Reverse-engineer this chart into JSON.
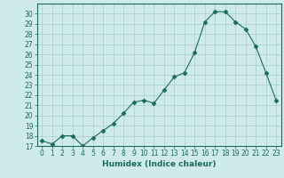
{
  "title": "",
  "xlabel": "Humidex (Indice chaleur)",
  "ylabel": "",
  "x": [
    0,
    1,
    2,
    3,
    4,
    5,
    6,
    7,
    8,
    9,
    10,
    11,
    12,
    13,
    14,
    15,
    16,
    17,
    18,
    19,
    20,
    21,
    22,
    23
  ],
  "y": [
    17.5,
    17.2,
    18.0,
    18.0,
    17.0,
    17.8,
    18.5,
    19.2,
    20.2,
    21.3,
    21.5,
    21.2,
    22.5,
    23.8,
    24.2,
    26.2,
    29.2,
    30.2,
    30.2,
    29.2,
    28.5,
    26.8,
    24.2,
    21.5
  ],
  "line_color": "#1a6b5a",
  "marker": "D",
  "marker_size": 2.5,
  "bg_color": "#ceeaea",
  "grid_color": "#aacccc",
  "ylim": [
    17,
    31
  ],
  "xlim": [
    -0.5,
    23.5
  ],
  "yticks": [
    17,
    18,
    19,
    20,
    21,
    22,
    23,
    24,
    25,
    26,
    27,
    28,
    29,
    30
  ],
  "xticks": [
    0,
    1,
    2,
    3,
    4,
    5,
    6,
    7,
    8,
    9,
    10,
    11,
    12,
    13,
    14,
    15,
    16,
    17,
    18,
    19,
    20,
    21,
    22,
    23
  ],
  "label_fontsize": 6.5,
  "tick_fontsize": 5.5
}
